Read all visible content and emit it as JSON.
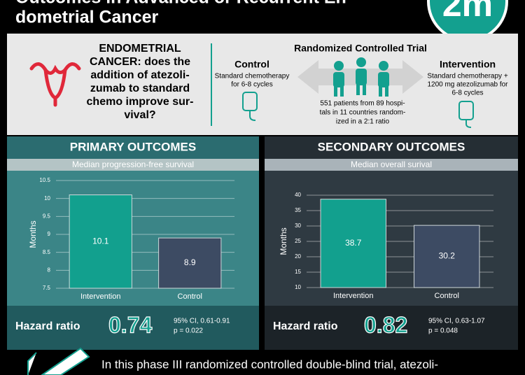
{
  "header": {
    "title_lines": [
      "Outcomes in Advanced or Recurrent En-",
      "dometrial Cancer"
    ],
    "logo": "2m"
  },
  "question": {
    "lines": [
      "ENDOMETRIAL",
      "CANCER: does the",
      "addition of atezoli-",
      "zumab to standard",
      "chemo improve sur-",
      "vival?"
    ]
  },
  "trial": {
    "title": "Randomized Controlled Trial",
    "control": {
      "label": "Control",
      "lines": [
        "Standard chemotherapy",
        "for 6-8 cycles"
      ]
    },
    "intervention": {
      "label": "Intervention",
      "lines": [
        "Standard chemotherapy +",
        "1200 mg atezolizumab for",
        "6-8 cycles"
      ]
    },
    "patients": [
      "551 patients from 89 hospi-",
      "tals in 11 countries random-",
      "ized in a 2:1 ratio"
    ]
  },
  "chart_data": [
    {
      "type": "bar",
      "title": "PRIMARY OUTCOMES",
      "subtitle": "Median progression-free survival",
      "y_label": "Months",
      "categories": [
        "Intervention",
        "Control"
      ],
      "values": [
        10.1,
        8.9
      ],
      "colors": [
        "#12a08e",
        "#3d4b63"
      ],
      "ylim": [
        7.5,
        10.5
      ],
      "yticks": [
        7.5,
        8,
        8.5,
        9,
        9.5,
        10,
        10.5
      ],
      "grid": true,
      "hazard": {
        "label": "Hazard ratio",
        "value": 0.74,
        "ci": "95% CI, 0.61-0.91",
        "p": "p = 0.022"
      }
    },
    {
      "type": "bar",
      "title": "SECONDARY OUTCOMES",
      "subtitle": "Median overall surival",
      "y_label": "Months",
      "categories": [
        "Intervention",
        "Control"
      ],
      "values": [
        38.7,
        30.2
      ],
      "colors": [
        "#12a08e",
        "#3d4b63"
      ],
      "ylim": [
        10,
        40
      ],
      "yticks": [
        10,
        15,
        20,
        25,
        30,
        35,
        40
      ],
      "grid": true,
      "hazard": {
        "label": "Hazard ratio",
        "value": 0.82,
        "ci": "95% CI, 0.63-1.07",
        "p": "p = 0.048"
      }
    }
  ],
  "footer": {
    "text": "In this phase III randomized controlled double-blind trial, atezoli-"
  }
}
